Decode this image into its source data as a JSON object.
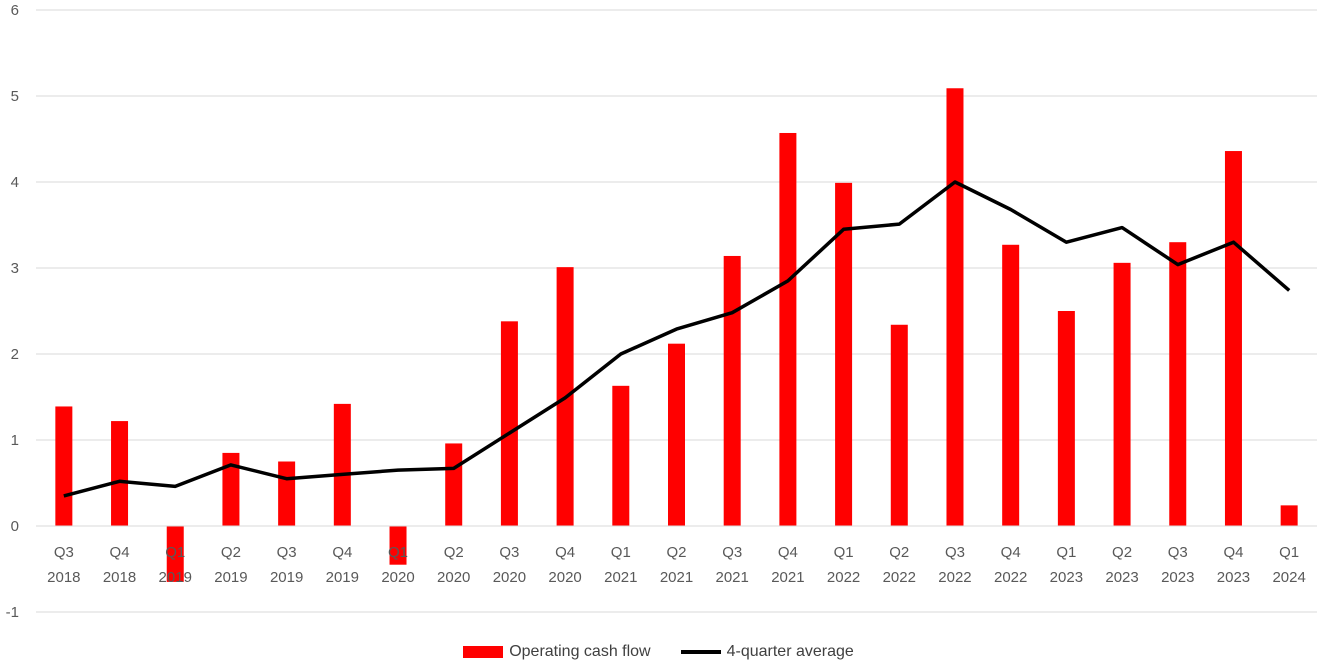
{
  "chart_data": {
    "type": "bar",
    "categories": [
      [
        "Q3",
        "2018"
      ],
      [
        "Q4",
        "2018"
      ],
      [
        "Q1",
        "2019"
      ],
      [
        "Q2",
        "2019"
      ],
      [
        "Q3",
        "2019"
      ],
      [
        "Q4",
        "2019"
      ],
      [
        "Q1",
        "2020"
      ],
      [
        "Q2",
        "2020"
      ],
      [
        "Q3",
        "2020"
      ],
      [
        "Q4",
        "2020"
      ],
      [
        "Q1",
        "2021"
      ],
      [
        "Q2",
        "2021"
      ],
      [
        "Q3",
        "2021"
      ],
      [
        "Q4",
        "2021"
      ],
      [
        "Q1",
        "2022"
      ],
      [
        "Q2",
        "2022"
      ],
      [
        "Q3",
        "2022"
      ],
      [
        "Q4",
        "2022"
      ],
      [
        "Q1",
        "2023"
      ],
      [
        "Q2",
        "2023"
      ],
      [
        "Q3",
        "2023"
      ],
      [
        "Q4",
        "2023"
      ],
      [
        "Q1",
        "2024"
      ]
    ],
    "series": [
      {
        "name": "Operating cash flow",
        "type": "bar",
        "color": "#FF0000",
        "values": [
          1.39,
          1.22,
          -0.65,
          0.85,
          0.75,
          1.42,
          -0.45,
          0.96,
          2.38,
          3.01,
          1.63,
          2.12,
          3.14,
          4.57,
          3.99,
          2.34,
          5.09,
          3.27,
          2.5,
          3.06,
          3.3,
          4.36,
          0.24
        ]
      },
      {
        "name": "4-quarter average",
        "type": "line",
        "color": "#000000",
        "values": [
          0.35,
          0.52,
          0.46,
          0.71,
          0.55,
          0.6,
          0.65,
          0.67,
          1.08,
          1.49,
          2.0,
          2.29,
          2.48,
          2.85,
          3.45,
          3.51,
          4.0,
          3.68,
          3.3,
          3.47,
          3.04,
          3.3,
          2.74
        ]
      }
    ],
    "ylim": [
      -1,
      6
    ],
    "yticks": [
      -1,
      0,
      1,
      2,
      3,
      4,
      5,
      6
    ],
    "grid": true,
    "legend_position": "bottom-center"
  }
}
